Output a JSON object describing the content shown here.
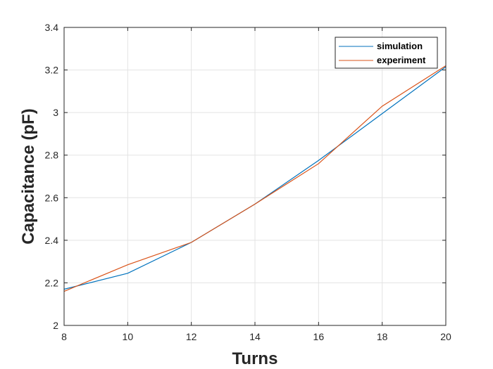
{
  "chart_data": {
    "type": "line",
    "title": "",
    "xlabel": "Turns",
    "ylabel": "Capacitance (pF)",
    "xlim": [
      8,
      20
    ],
    "ylim": [
      2,
      3.4
    ],
    "x_ticks": [
      8,
      10,
      12,
      14,
      16,
      18,
      20
    ],
    "y_ticks": [
      2,
      2.2,
      2.4,
      2.6,
      2.8,
      3,
      3.2,
      3.4
    ],
    "x_tick_labels": [
      "8",
      "10",
      "12",
      "14",
      "16",
      "18",
      "20"
    ],
    "y_tick_labels": [
      "2",
      "2.2",
      "2.4",
      "2.6",
      "2.8",
      "3",
      "3.2",
      "3.4"
    ],
    "grid": true,
    "legend_position": "top-right",
    "x": [
      8,
      10,
      12,
      14,
      16,
      18,
      20
    ],
    "series": [
      {
        "name": "simulation",
        "color": "#0072BD",
        "values": [
          2.17,
          2.245,
          2.39,
          2.57,
          2.775,
          2.995,
          3.215
        ]
      },
      {
        "name": "experiment",
        "color": "#D95319",
        "values": [
          2.16,
          2.285,
          2.39,
          2.57,
          2.76,
          3.03,
          3.22
        ]
      }
    ]
  }
}
